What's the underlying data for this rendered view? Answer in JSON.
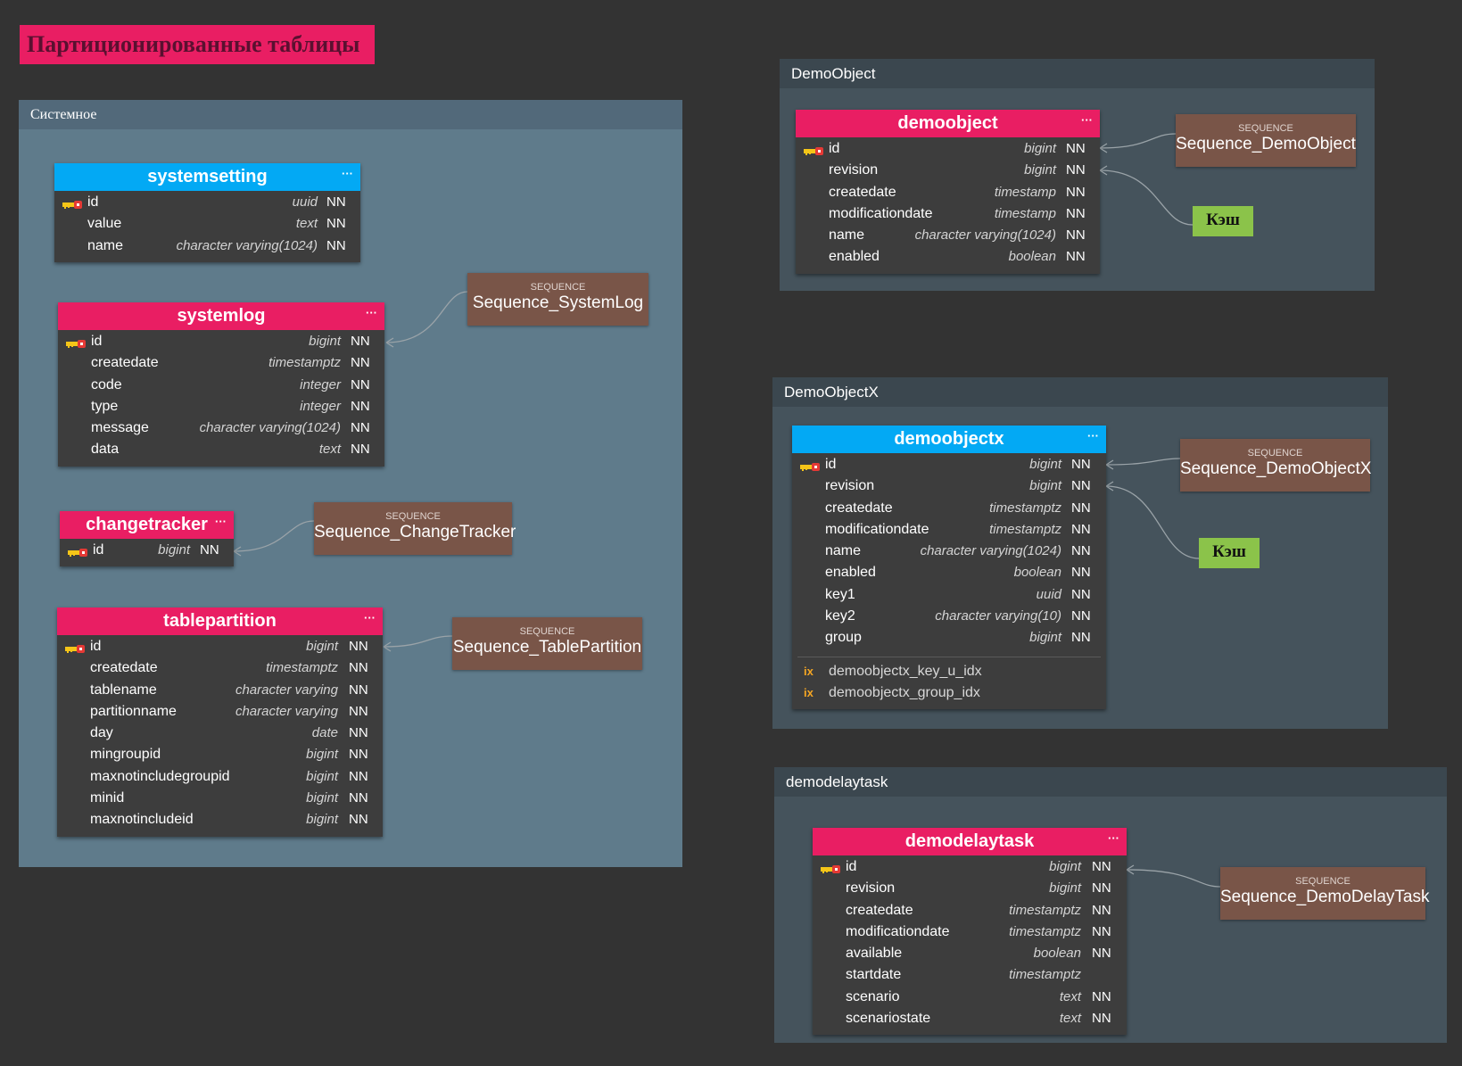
{
  "diagram_title": "Партиционированные таблицы",
  "groups": {
    "system": "Системное",
    "demoobject": "DemoObject",
    "demoobjectx": "DemoObjectX",
    "demodelaytask": "demodelaytask"
  },
  "sequence_label": "SEQUENCE",
  "cache_label": "Кэш",
  "more_glyph": "···",
  "nn": "NN",
  "tables": {
    "systemsetting": {
      "name": "systemsetting",
      "columns": [
        {
          "name": "id",
          "type": "uuid",
          "nn": "NN",
          "pk": true
        },
        {
          "name": "value",
          "type": "text",
          "nn": "NN"
        },
        {
          "name": "name",
          "type": "character varying(1024)",
          "nn": "NN"
        }
      ]
    },
    "systemlog": {
      "name": "systemlog",
      "columns": [
        {
          "name": "id",
          "type": "bigint",
          "nn": "NN",
          "pk": true
        },
        {
          "name": "createdate",
          "type": "timestamptz",
          "nn": "NN"
        },
        {
          "name": "code",
          "type": "integer",
          "nn": "NN"
        },
        {
          "name": "type",
          "type": "integer",
          "nn": "NN"
        },
        {
          "name": "message",
          "type": "character varying(1024)",
          "nn": "NN"
        },
        {
          "name": "data",
          "type": "text",
          "nn": "NN"
        }
      ]
    },
    "changetracker": {
      "name": "changetracker",
      "columns": [
        {
          "name": "id",
          "type": "bigint",
          "nn": "NN",
          "pk": true
        }
      ]
    },
    "tablepartition": {
      "name": "tablepartition",
      "columns": [
        {
          "name": "id",
          "type": "bigint",
          "nn": "NN",
          "pk": true
        },
        {
          "name": "createdate",
          "type": "timestamptz",
          "nn": "NN"
        },
        {
          "name": "tablename",
          "type": "character varying",
          "nn": "NN"
        },
        {
          "name": "partitionname",
          "type": "character varying",
          "nn": "NN"
        },
        {
          "name": "day",
          "type": "date",
          "nn": "NN"
        },
        {
          "name": "mingroupid",
          "type": "bigint",
          "nn": "NN"
        },
        {
          "name": "maxnotincludegroupid",
          "type": "bigint",
          "nn": "NN"
        },
        {
          "name": "minid",
          "type": "bigint",
          "nn": "NN"
        },
        {
          "name": "maxnotincludeid",
          "type": "bigint",
          "nn": "NN"
        }
      ]
    },
    "demoobject": {
      "name": "demoobject",
      "columns": [
        {
          "name": "id",
          "type": "bigint",
          "nn": "NN",
          "pk": true
        },
        {
          "name": "revision",
          "type": "bigint",
          "nn": "NN"
        },
        {
          "name": "createdate",
          "type": "timestamp",
          "nn": "NN"
        },
        {
          "name": "modificationdate",
          "type": "timestamp",
          "nn": "NN"
        },
        {
          "name": "name",
          "type": "character varying(1024)",
          "nn": "NN"
        },
        {
          "name": "enabled",
          "type": "boolean",
          "nn": "NN"
        }
      ]
    },
    "demoobjectx": {
      "name": "demoobjectx",
      "columns": [
        {
          "name": "id",
          "type": "bigint",
          "nn": "NN",
          "pk": true
        },
        {
          "name": "revision",
          "type": "bigint",
          "nn": "NN"
        },
        {
          "name": "createdate",
          "type": "timestamptz",
          "nn": "NN"
        },
        {
          "name": "modificationdate",
          "type": "timestamptz",
          "nn": "NN"
        },
        {
          "name": "name",
          "type": "character varying(1024)",
          "nn": "NN"
        },
        {
          "name": "enabled",
          "type": "boolean",
          "nn": "NN"
        },
        {
          "name": "key1",
          "type": "uuid",
          "nn": "NN"
        },
        {
          "name": "key2",
          "type": "character varying(10)",
          "nn": "NN"
        },
        {
          "name": "group",
          "type": "bigint",
          "nn": "NN"
        }
      ],
      "indexes": [
        {
          "marker": "ix",
          "name": "demoobjectx_key_u_idx"
        },
        {
          "marker": "ix",
          "name": "demoobjectx_group_idx"
        }
      ]
    },
    "demodelaytask": {
      "name": "demodelaytask",
      "columns": [
        {
          "name": "id",
          "type": "bigint",
          "nn": "NN",
          "pk": true
        },
        {
          "name": "revision",
          "type": "bigint",
          "nn": "NN"
        },
        {
          "name": "createdate",
          "type": "timestamptz",
          "nn": "NN"
        },
        {
          "name": "modificationdate",
          "type": "timestamptz",
          "nn": "NN"
        },
        {
          "name": "available",
          "type": "boolean",
          "nn": "NN"
        },
        {
          "name": "startdate",
          "type": "timestamptz",
          "nn": ""
        },
        {
          "name": "scenario",
          "type": "text",
          "nn": "NN"
        },
        {
          "name": "scenariostate",
          "type": "text",
          "nn": "NN"
        }
      ]
    }
  },
  "sequences": {
    "systemlog": "Sequence_SystemLog",
    "changetracker": "Sequence_ChangeTracker",
    "tablepartition": "Sequence_TablePartition",
    "demoobject": "Sequence_DemoObject",
    "demoobjectx": "Sequence_DemoObjectX",
    "demodelaytask": "Sequence_DemoDelayTask"
  },
  "colors": {
    "background": "#333333",
    "table_header_partitioned": "#e91e63",
    "table_header_regular": "#03a9f4",
    "sequence": "#795548",
    "cache": "#8bc34a",
    "system_group": "#5f7b8b",
    "dark_group": "#45535c"
  },
  "icons": {
    "primary_key": "key-icon",
    "index": "index-icon",
    "more": "more-icon"
  }
}
